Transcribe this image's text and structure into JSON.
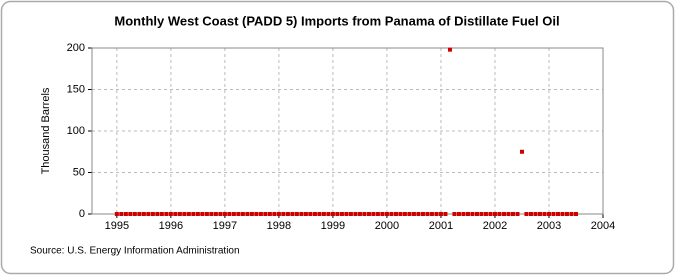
{
  "chart_data": {
    "type": "scatter",
    "title": "Monthly West Coast (PADD 5) Imports from Panama of Distillate Fuel Oil",
    "y_label": "Thousand Barrels",
    "source": "Source: U.S. Energy Information Administration",
    "color": "#cc0000",
    "grid": true,
    "x": [
      1995,
      1995.083,
      1995.167,
      1995.25,
      1995.333,
      1995.417,
      1995.5,
      1995.583,
      1995.667,
      1995.75,
      1995.833,
      1995.917,
      1996,
      1996.083,
      1996.167,
      1996.25,
      1996.333,
      1996.417,
      1996.5,
      1996.583,
      1996.667,
      1996.75,
      1996.833,
      1996.917,
      1997,
      1997.083,
      1997.167,
      1997.25,
      1997.333,
      1997.417,
      1997.5,
      1997.583,
      1997.667,
      1997.75,
      1997.833,
      1997.917,
      1998,
      1998.083,
      1998.167,
      1998.25,
      1998.333,
      1998.417,
      1998.5,
      1998.583,
      1998.667,
      1998.75,
      1998.833,
      1998.917,
      1999,
      1999.083,
      1999.167,
      1999.25,
      1999.333,
      1999.417,
      1999.5,
      1999.583,
      1999.667,
      1999.75,
      1999.833,
      1999.917,
      2000,
      2000.083,
      2000.167,
      2000.25,
      2000.333,
      2000.417,
      2000.5,
      2000.583,
      2000.667,
      2000.75,
      2000.833,
      2000.917,
      2001,
      2001.083,
      2001.167,
      2001.25,
      2001.333,
      2001.417,
      2001.5,
      2001.583,
      2001.667,
      2001.75,
      2001.833,
      2001.917,
      2002,
      2002.083,
      2002.167,
      2002.25,
      2002.333,
      2002.417,
      2002.5,
      2002.583,
      2002.667,
      2002.75,
      2002.833,
      2002.917,
      2003,
      2003.083,
      2003.167,
      2003.25,
      2003.333,
      2003.417,
      2003.5
    ],
    "values": [
      0,
      0,
      0,
      0,
      0,
      0,
      0,
      0,
      0,
      0,
      0,
      0,
      0,
      0,
      0,
      0,
      0,
      0,
      0,
      0,
      0,
      0,
      0,
      0,
      0,
      0,
      0,
      0,
      0,
      0,
      0,
      0,
      0,
      0,
      0,
      0,
      0,
      0,
      0,
      0,
      0,
      0,
      0,
      0,
      0,
      0,
      0,
      0,
      0,
      0,
      0,
      0,
      0,
      0,
      0,
      0,
      0,
      0,
      0,
      0,
      0,
      0,
      0,
      0,
      0,
      0,
      0,
      0,
      0,
      0,
      0,
      0,
      0,
      0,
      198,
      0,
      0,
      0,
      0,
      0,
      0,
      0,
      0,
      0,
      0,
      0,
      0,
      0,
      0,
      0,
      75,
      0,
      0,
      0,
      0,
      0,
      0,
      0,
      0,
      0,
      0,
      0,
      0
    ],
    "xlim": [
      1994.54,
      2004
    ],
    "xticks": [
      1995,
      1996,
      1997,
      1998,
      1999,
      2000,
      2001,
      2002,
      2003,
      2004
    ],
    "ylim": [
      0,
      200
    ],
    "yticks": [
      0,
      50,
      100,
      150,
      200
    ]
  }
}
